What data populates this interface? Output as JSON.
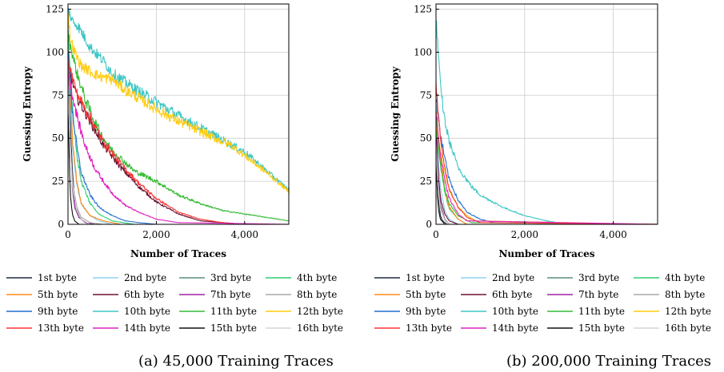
{
  "chart_data": [
    {
      "type": "line",
      "caption": "(a) 45,000 Training Traces",
      "xlabel": "Number of Traces",
      "ylabel": "Guessing Entropy",
      "xlim": [
        0,
        5000
      ],
      "ylim": [
        0,
        128
      ],
      "xticks": [
        0,
        2000,
        4000
      ],
      "xtick_labels": [
        "0",
        "2,000",
        "4,000"
      ],
      "yticks": [
        0,
        25,
        50,
        75,
        100,
        125
      ],
      "ytick_labels": [
        "0",
        "25",
        "50",
        "75",
        "100",
        "125"
      ],
      "grid": true,
      "legend": "bottom",
      "series": [
        {
          "name": "1st byte",
          "color": "#1f2a44",
          "x": [
            0,
            50,
            100,
            150,
            200,
            300,
            400,
            500,
            5000
          ],
          "y": [
            115,
            60,
            30,
            15,
            8,
            3,
            1,
            0,
            0
          ]
        },
        {
          "name": "2nd byte",
          "color": "#8fd3ef",
          "x": [
            0,
            50,
            100,
            200,
            300,
            500,
            700,
            1000,
            5000
          ],
          "y": [
            110,
            70,
            45,
            22,
            12,
            5,
            2,
            0,
            0
          ]
        },
        {
          "name": "3rd byte",
          "color": "#5e8f7a",
          "x": [
            0,
            50,
            100,
            150,
            250,
            400,
            600,
            5000
          ],
          "y": [
            95,
            45,
            20,
            10,
            4,
            1,
            0,
            0
          ]
        },
        {
          "name": "4th byte",
          "color": "#2ecf6f",
          "x": [
            0,
            100,
            200,
            300,
            500,
            700,
            1000,
            1500,
            5000
          ],
          "y": [
            110,
            70,
            40,
            25,
            12,
            6,
            2,
            0,
            0
          ]
        },
        {
          "name": "5th byte",
          "color": "#ff8a1c",
          "x": [
            0,
            100,
            200,
            300,
            500,
            800,
            1200,
            5000
          ],
          "y": [
            100,
            50,
            25,
            12,
            5,
            2,
            0,
            0
          ]
        },
        {
          "name": "6th byte",
          "color": "#6b1230",
          "x": [
            0,
            200,
            500,
            800,
            1200,
            1600,
            2000,
            2500,
            3000,
            3500,
            4000,
            5000
          ],
          "y": [
            92,
            74,
            60,
            46,
            33,
            22,
            13,
            6,
            2,
            1,
            0,
            0
          ]
        },
        {
          "name": "7th byte",
          "color": "#a020a0",
          "x": [
            0,
            50,
            100,
            150,
            250,
            400,
            600,
            5000
          ],
          "y": [
            90,
            45,
            22,
            10,
            4,
            1,
            0,
            0
          ]
        },
        {
          "name": "8th byte",
          "color": "#a8a8a8",
          "x": [
            0,
            50,
            100,
            200,
            300,
            500,
            800,
            5000
          ],
          "y": [
            85,
            50,
            25,
            10,
            4,
            1,
            0,
            0
          ]
        },
        {
          "name": "9th byte",
          "color": "#1f6fd0",
          "x": [
            0,
            100,
            200,
            300,
            500,
            700,
            1000,
            1300,
            1600,
            2000,
            5000
          ],
          "y": [
            100,
            65,
            45,
            30,
            17,
            10,
            5,
            2,
            1,
            0,
            0
          ]
        },
        {
          "name": "10th byte",
          "color": "#3ec6c6",
          "x": [
            0,
            100,
            200,
            300,
            500,
            800,
            1000,
            1500,
            2000,
            2500,
            3000,
            3500,
            4000,
            4500,
            5000
          ],
          "y": [
            125,
            118,
            116,
            112,
            103,
            95,
            88,
            79,
            71,
            63,
            56,
            49,
            42,
            31,
            20
          ]
        },
        {
          "name": "11th byte",
          "color": "#33bb33",
          "x": [
            0,
            200,
            400,
            600,
            800,
            1000,
            1500,
            2000,
            2500,
            3000,
            3500,
            4000,
            4500,
            5000
          ],
          "y": [
            110,
            88,
            72,
            60,
            50,
            43,
            31,
            25,
            17,
            12,
            8,
            6,
            4,
            2
          ]
        },
        {
          "name": "12th byte",
          "color": "#ffcc11",
          "x": [
            0,
            50,
            150,
            300,
            500,
            700,
            1000,
            1300,
            1500,
            2000,
            2500,
            3000,
            3500,
            3700,
            4000,
            4500,
            5000
          ],
          "y": [
            125,
            108,
            100,
            92,
            89,
            86,
            84,
            78,
            75,
            67,
            60,
            54,
            48,
            46,
            40,
            30,
            19
          ]
        },
        {
          "name": "13th byte",
          "color": "#ff3333",
          "x": [
            0,
            200,
            500,
            800,
            1200,
            1600,
            2000,
            2500,
            3000,
            3500,
            4000,
            5000
          ],
          "y": [
            95,
            76,
            62,
            48,
            35,
            24,
            15,
            7,
            3,
            1,
            0,
            0
          ]
        },
        {
          "name": "14th byte",
          "color": "#e020c0",
          "x": [
            0,
            100,
            250,
            400,
            600,
            800,
            1000,
            1300,
            1600,
            2000,
            2500,
            5000
          ],
          "y": [
            90,
            75,
            58,
            45,
            33,
            25,
            18,
            11,
            7,
            3,
            1,
            0
          ]
        },
        {
          "name": "15th byte",
          "color": "#111111",
          "x": [
            0,
            30,
            60,
            100,
            150,
            250,
            5000
          ],
          "y": [
            70,
            35,
            15,
            6,
            2,
            0,
            0
          ]
        },
        {
          "name": "16th byte",
          "color": "#d6d6d6",
          "x": [
            0,
            50,
            100,
            200,
            300,
            500,
            5000
          ],
          "y": [
            80,
            45,
            22,
            8,
            3,
            0,
            0
          ]
        }
      ]
    },
    {
      "type": "line",
      "caption": "(b) 200,000 Training Traces",
      "xlabel": "Number of Traces",
      "ylabel": "Guessing Entropy",
      "xlim": [
        0,
        5000
      ],
      "ylim": [
        0,
        128
      ],
      "xticks": [
        0,
        2000,
        4000
      ],
      "xtick_labels": [
        "0",
        "2,000",
        "4,000"
      ],
      "yticks": [
        0,
        25,
        50,
        75,
        100,
        125
      ],
      "ytick_labels": [
        "0",
        "25",
        "50",
        "75",
        "100",
        "125"
      ],
      "grid": true,
      "legend": "bottom",
      "series": [
        {
          "name": "1st byte",
          "color": "#1f2a44",
          "x": [
            0,
            30,
            60,
            100,
            150,
            250,
            5000
          ],
          "y": [
            60,
            30,
            14,
            5,
            2,
            0,
            0
          ]
        },
        {
          "name": "2nd byte",
          "color": "#8fd3ef",
          "x": [
            0,
            50,
            100,
            200,
            300,
            500,
            5000
          ],
          "y": [
            70,
            40,
            22,
            8,
            3,
            0,
            0
          ]
        },
        {
          "name": "3rd byte",
          "color": "#5e8f7a",
          "x": [
            0,
            50,
            100,
            200,
            300,
            5000
          ],
          "y": [
            55,
            28,
            12,
            3,
            0,
            0
          ]
        },
        {
          "name": "4th byte",
          "color": "#2ecf6f",
          "x": [
            0,
            100,
            200,
            300,
            500,
            700,
            5000
          ],
          "y": [
            65,
            35,
            18,
            9,
            3,
            0,
            0
          ]
        },
        {
          "name": "5th byte",
          "color": "#ff8a1c",
          "x": [
            0,
            100,
            200,
            300,
            500,
            700,
            5000
          ],
          "y": [
            60,
            38,
            20,
            10,
            3,
            0,
            0
          ]
        },
        {
          "name": "6th byte",
          "color": "#6b1230",
          "x": [
            0,
            50,
            100,
            200,
            300,
            500,
            5000
          ],
          "y": [
            55,
            30,
            15,
            6,
            2,
            0,
            0
          ]
        },
        {
          "name": "7th byte",
          "color": "#a020a0",
          "x": [
            0,
            50,
            100,
            200,
            300,
            5000
          ],
          "y": [
            50,
            25,
            11,
            3,
            0,
            0
          ]
        },
        {
          "name": "8th byte",
          "color": "#a8a8a8",
          "x": [
            0,
            50,
            100,
            200,
            300,
            5000
          ],
          "y": [
            45,
            22,
            10,
            3,
            0,
            0
          ]
        },
        {
          "name": "9th byte",
          "color": "#1f6fd0",
          "x": [
            0,
            100,
            200,
            300,
            500,
            700,
            1000,
            1300,
            5000
          ],
          "y": [
            75,
            52,
            38,
            26,
            14,
            7,
            3,
            1,
            0
          ]
        },
        {
          "name": "10th byte",
          "color": "#3ec6c6",
          "x": [
            0,
            100,
            200,
            300,
            500,
            800,
            1000,
            1500,
            2000,
            2500,
            3000,
            5000
          ],
          "y": [
            120,
            80,
            60,
            48,
            33,
            22,
            17,
            10,
            5,
            2,
            0,
            0
          ]
        },
        {
          "name": "11th byte",
          "color": "#33bb33",
          "x": [
            0,
            100,
            200,
            300,
            500,
            800,
            5000
          ],
          "y": [
            55,
            35,
            20,
            12,
            5,
            1,
            0
          ]
        },
        {
          "name": "12th byte",
          "color": "#ffcc11",
          "x": [
            0,
            100,
            200,
            300,
            500,
            700,
            900,
            5000
          ],
          "y": [
            65,
            42,
            30,
            20,
            10,
            5,
            2,
            0
          ]
        },
        {
          "name": "13th byte",
          "color": "#ff3333",
          "x": [
            0,
            100,
            200,
            300,
            500,
            700,
            1000,
            5000
          ],
          "y": [
            80,
            50,
            32,
            20,
            10,
            4,
            1,
            0
          ]
        },
        {
          "name": "14th byte",
          "color": "#e020c0",
          "x": [
            0,
            100,
            200,
            300,
            500,
            700,
            5000
          ],
          "y": [
            65,
            40,
            25,
            15,
            6,
            2,
            0
          ]
        },
        {
          "name": "15th byte",
          "color": "#111111",
          "x": [
            0,
            30,
            60,
            100,
            200,
            5000
          ],
          "y": [
            40,
            18,
            8,
            3,
            0,
            0
          ]
        },
        {
          "name": "16th byte",
          "color": "#d6d6d6",
          "x": [
            0,
            50,
            100,
            200,
            300,
            5000
          ],
          "y": [
            45,
            20,
            8,
            2,
            0,
            0
          ]
        }
      ]
    }
  ]
}
